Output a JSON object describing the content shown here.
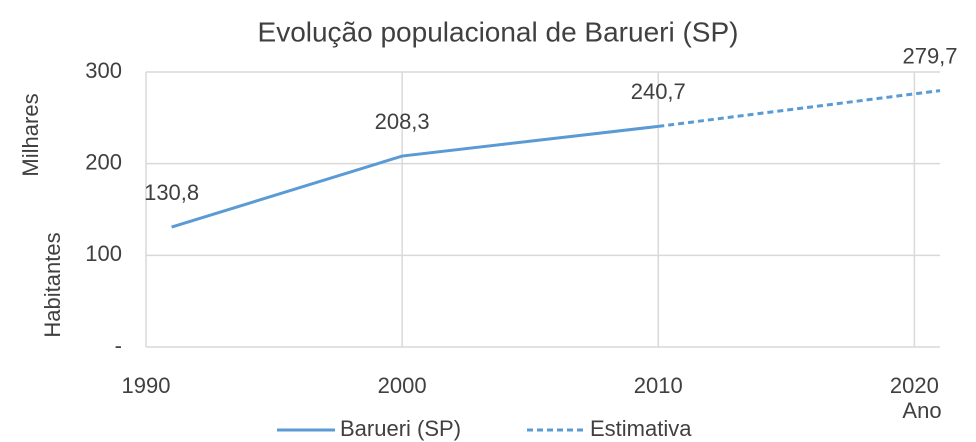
{
  "chart_data": {
    "type": "line",
    "title": "Evolução populacional de Barueri (SP)",
    "xlabel": "Ano",
    "ylabel": [
      "Milhares",
      "Habitantes"
    ],
    "xlim": [
      1990,
      2021
    ],
    "xticks": [
      1990,
      2000,
      2010,
      2020
    ],
    "ylim": [
      0,
      300
    ],
    "yticks": [
      {
        "value": 0,
        "label": "-"
      },
      100,
      200,
      300
    ],
    "grid": true,
    "legend": "bottom",
    "series": [
      {
        "name": "Barueri (SP)",
        "color": "#5b9bd5",
        "dash": false,
        "x": [
          1991,
          2000,
          2010
        ],
        "values": [
          130.8,
          208.3,
          240.7
        ],
        "value_labels": [
          "130,8",
          "208,3",
          "240,7"
        ]
      },
      {
        "name": "Estimativa",
        "color": "#5b9bd5",
        "dash": true,
        "x": [
          2010,
          2021
        ],
        "values": [
          240.7,
          279.7
        ],
        "value_labels": [
          null,
          "279,7"
        ]
      }
    ]
  }
}
